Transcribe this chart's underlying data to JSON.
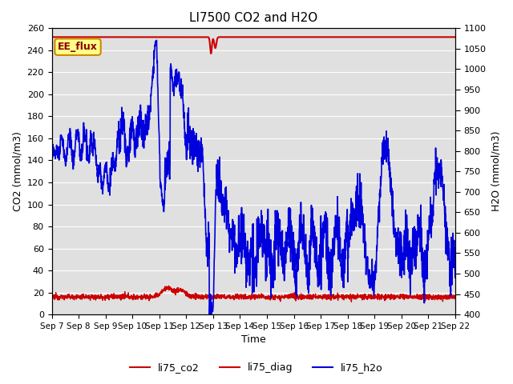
{
  "title": "LI7500 CO2 and H2O",
  "xlabel": "Time",
  "ylabel_left": "CO2 (mmol/m3)",
  "ylabel_right": "H2O (mmol/m3)",
  "ylim_left": [
    0,
    260
  ],
  "ylim_right": [
    400,
    1100
  ],
  "annotation_text": "EE_flux",
  "annotation_box_color": "#FFFF88",
  "annotation_box_edge": "#CC8800",
  "legend_labels": [
    "li75_co2",
    "li75_diag",
    "li75_h2o"
  ],
  "co2_color": "#CC0000",
  "diag_color": "#CC0000",
  "h2o_color": "#0000DD",
  "background_color": "#E0E0E0",
  "grid_color": "#FFFFFF",
  "xtick_labels": [
    "Sep 7",
    "Sep 8",
    "Sep 9",
    "Sep 10",
    "Sep 11",
    "Sep 12",
    "Sep 13",
    "Sep 14",
    "Sep 15",
    "Sep 16",
    "Sep 17",
    "Sep 18",
    "Sep 19",
    "Sep 20",
    "Sep 21",
    "Sep 22"
  ],
  "diag_value": 252,
  "yticks_left": [
    0,
    20,
    40,
    60,
    80,
    100,
    120,
    140,
    160,
    180,
    200,
    220,
    240,
    260
  ],
  "yticks_right": [
    400,
    450,
    500,
    550,
    600,
    650,
    700,
    750,
    800,
    850,
    900,
    950,
    1000,
    1050,
    1100
  ]
}
